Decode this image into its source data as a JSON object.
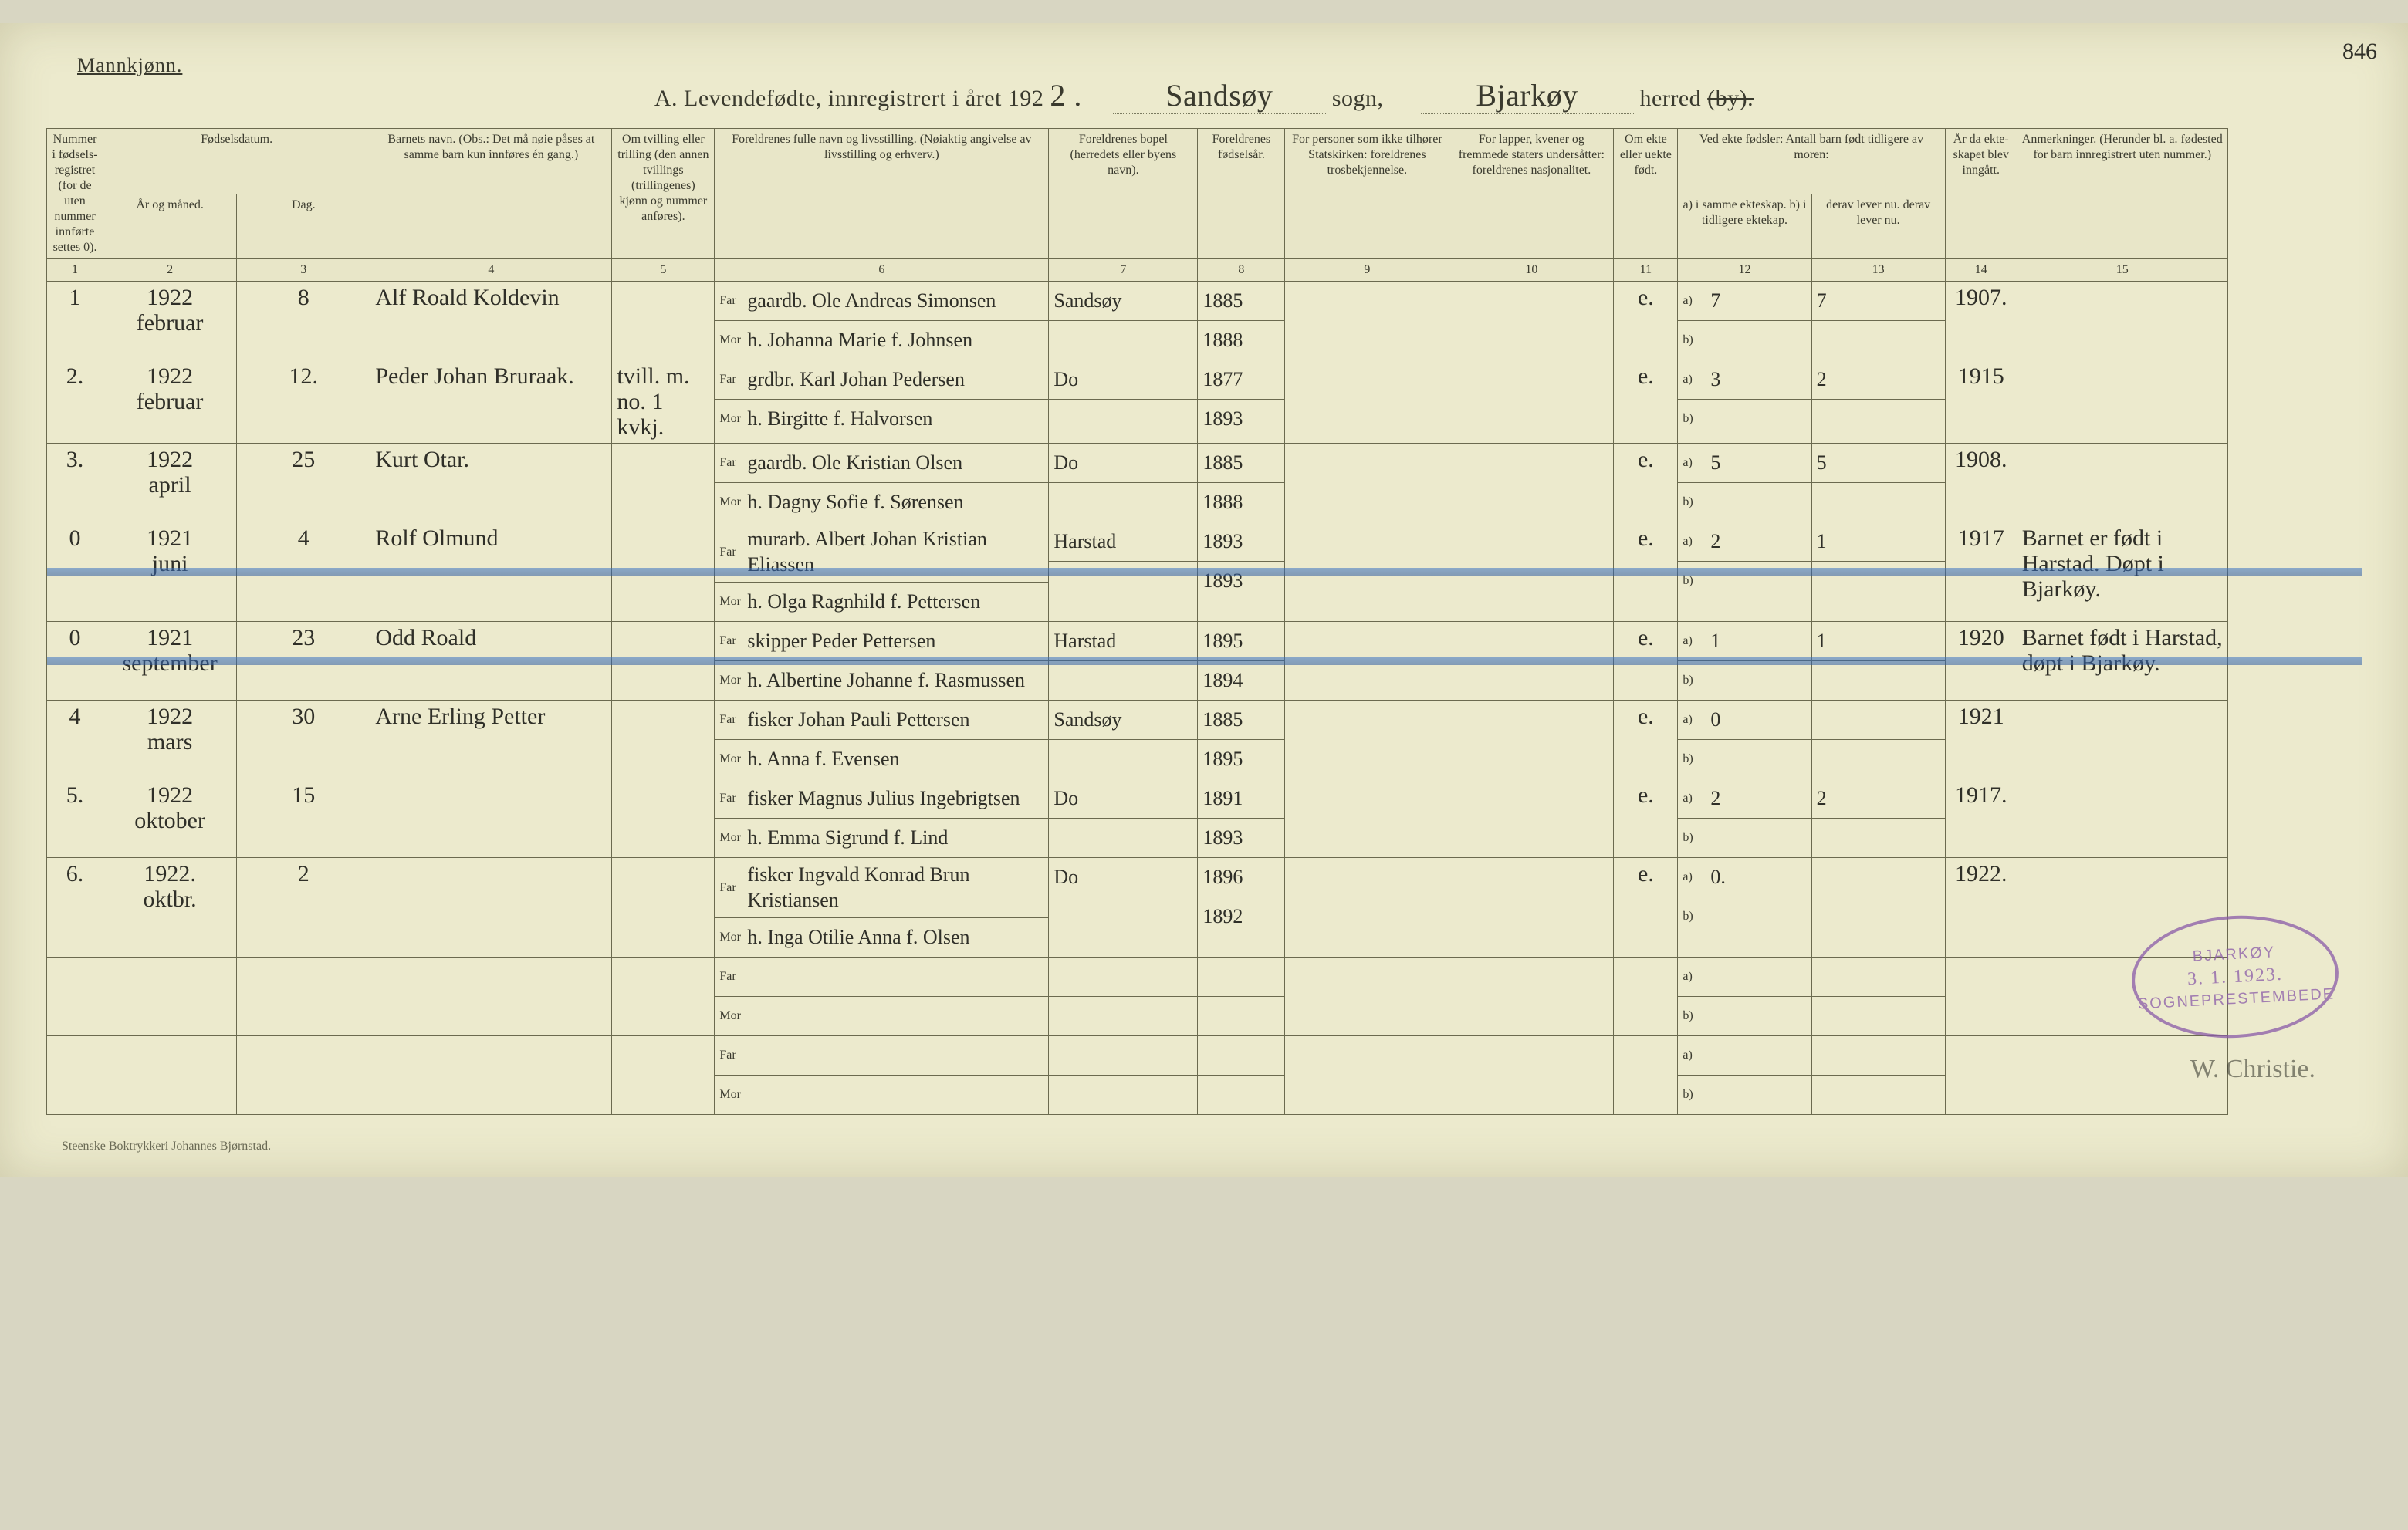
{
  "meta": {
    "gender_label": "Mannkjønn.",
    "page_number_hand": "846",
    "title_prefix": "A.  Levendefødte, innregistrert i året 192",
    "year_suffix_hand": "2 .",
    "sogn_label": "sogn,",
    "sogn_value": "Sandsøy",
    "herred_label": "herred",
    "herred_strike": "(by).",
    "herred_value": "Bjarkøy",
    "printer": "Steenske Boktrykkeri Johannes Bjørnstad.",
    "signature": "W. Christie.",
    "stamp_top": "BJARKØY",
    "stamp_date": "3. 1. 1923.",
    "stamp_bottom": "SOGNEPRESTEMBEDE"
  },
  "headers": {
    "c1": "Nummer i fødsels­registret (for de uten nummer innførte settes 0).",
    "c2_group": "Fødselsdatum.",
    "c2": "År og måned.",
    "c3": "Dag.",
    "c4": "Barnets navn.\n(Obs.: Det må nøie påses at samme barn kun innføres én gang.)",
    "c5": "Om tvilling eller trilling (den annen tvillings (trillingenes) kjønn og nummer anføres).",
    "c6": "Foreldrenes fulle navn og livsstilling.\n(Nøiaktig angivelse av livsstilling og erhverv.)",
    "c7": "Foreldrenes bopel (herredets eller byens navn).",
    "c8": "For­eldrenes fødsels­år.",
    "c9": "For personer som ikke tilhører Statskirken: foreldrenes trosbekjennelse.",
    "c10": "For lapper, kvener og fremmede staters undersåtter: foreldrenes nasjonalitet.",
    "c11": "Om ekte eller uekte født.",
    "c12_group": "Ved ekte fødsler: Antall barn født tidligere av moren:",
    "c12": "a) i samme ekteskap.\nb) i tidligere ektekap.",
    "c13": "derav lever nu.\nderav lever nu.",
    "c14": "År da ekte­skapet blev inn­gått.",
    "c15": "Anmerkninger.\n(Herunder bl. a. fødested for barn innregistrert uten nummer.)",
    "nums": [
      "1",
      "2",
      "3",
      "4",
      "5",
      "6",
      "7",
      "8",
      "9",
      "10",
      "11",
      "12",
      "13",
      "14",
      "15"
    ],
    "far": "Far",
    "mor": "Mor",
    "a": "a)",
    "b": "b)"
  },
  "rows": [
    {
      "num": "1",
      "year_month": "1922\nfebruar",
      "day": "8",
      "child": "Alf Roald Koldevin",
      "twin": "",
      "far": "gaardb. Ole Andreas Simonsen",
      "mor": "h. Johanna Marie f. Johnsen",
      "res": "Sandsøy",
      "far_year": "1885",
      "mor_year": "1888",
      "rel": "",
      "nat": "",
      "legit": "e.",
      "a": "7",
      "b": "",
      "alive_a": "7",
      "alive_b": "",
      "marr_year": "1907.",
      "remarks": "",
      "struck": false
    },
    {
      "num": "2.",
      "year_month": "1922\nfebruar",
      "day": "12.",
      "child": "Peder Johan Bruraak.",
      "twin": "tvill. m.\nno. 1 kvkj.",
      "far": "grdbr. Karl Johan Pedersen",
      "mor": "h. Birgitte f. Halvorsen",
      "res": "Do",
      "far_year": "1877",
      "mor_year": "1893",
      "rel": "",
      "nat": "",
      "legit": "e.",
      "a": "3",
      "b": "",
      "alive_a": "2",
      "alive_b": "",
      "marr_year": "1915",
      "remarks": "",
      "struck": false
    },
    {
      "num": "3.",
      "year_month": "1922\napril",
      "day": "25",
      "child": "Kurt Otar.",
      "twin": "",
      "far": "gaardb. Ole Kristian Olsen",
      "mor": "h. Dagny Sofie f. Sørensen",
      "res": "Do",
      "far_year": "1885",
      "mor_year": "1888",
      "rel": "",
      "nat": "",
      "legit": "e.",
      "a": "5",
      "b": "",
      "alive_a": "5",
      "alive_b": "",
      "marr_year": "1908.",
      "remarks": "",
      "struck": false
    },
    {
      "num": "0",
      "year_month": "1921\njuni",
      "day": "4",
      "child": "Rolf Olmund",
      "twin": "",
      "far": "murarb. Albert Johan Kristian Eliassen",
      "mor": "h. Olga Ragnhild f. Pettersen",
      "res": "Harstad",
      "far_year": "1893",
      "mor_year": "1893",
      "rel": "",
      "nat": "",
      "legit": "e.",
      "a": "2",
      "b": "",
      "alive_a": "1",
      "alive_b": "",
      "marr_year": "1917",
      "remarks": "Barnet er født i Harstad. Døpt i Bjarkøy.",
      "struck": true
    },
    {
      "num": "0",
      "year_month": "1921\nseptember",
      "day": "23",
      "child": "Odd Roald",
      "twin": "",
      "far": "skipper Peder Pettersen",
      "mor": "h. Albertine Johanne f. Rasmussen",
      "res": "Harstad",
      "far_year": "1895",
      "mor_year": "1894",
      "rel": "",
      "nat": "",
      "legit": "e.",
      "a": "1",
      "b": "",
      "alive_a": "1",
      "alive_b": "",
      "marr_year": "1920",
      "remarks": "Barnet født i Harstad, døpt i Bjarkøy.",
      "struck": true
    },
    {
      "num": "4",
      "year_month": "1922\nmars",
      "day": "30",
      "child": "Arne Erling Petter",
      "twin": "",
      "far": "fisker Johan Pauli Pettersen",
      "mor": "h. Anna f. Evensen",
      "res": "Sandsøy",
      "far_year": "1885",
      "mor_year": "1895",
      "rel": "",
      "nat": "",
      "legit": "e.",
      "a": "0",
      "b": "",
      "alive_a": "",
      "alive_b": "",
      "marr_year": "1921",
      "remarks": "",
      "struck": false
    },
    {
      "num": "5.",
      "year_month": "1922\noktober",
      "day": "15",
      "child": "",
      "twin": "",
      "far": "fisker Magnus Julius Ingebrigtsen",
      "mor": "h. Emma Sigrund f. Lind",
      "res": "Do",
      "far_year": "1891",
      "mor_year": "1893",
      "rel": "",
      "nat": "",
      "legit": "e.",
      "a": "2",
      "b": "",
      "alive_a": "2",
      "alive_b": "",
      "marr_year": "1917.",
      "remarks": "",
      "struck": false
    },
    {
      "num": "6.",
      "year_month": "1922.\noktbr.",
      "day": "2",
      "child": "",
      "twin": "",
      "far": "fisker Ingvald Konrad Brun Kristiansen",
      "mor": "h. Inga Otilie Anna f. Olsen",
      "res": "Do",
      "far_year": "1896",
      "mor_year": "1892",
      "rel": "",
      "nat": "",
      "legit": "e.",
      "a": "0.",
      "b": "",
      "alive_a": "",
      "alive_b": "",
      "marr_year": "1922.",
      "remarks": "",
      "struck": false
    },
    {
      "num": "",
      "year_month": "",
      "day": "",
      "child": "",
      "twin": "",
      "far": "",
      "mor": "",
      "res": "",
      "far_year": "",
      "mor_year": "",
      "rel": "",
      "nat": "",
      "legit": "",
      "a": "",
      "b": "",
      "alive_a": "",
      "alive_b": "",
      "marr_year": "",
      "remarks": "",
      "struck": false
    },
    {
      "num": "",
      "year_month": "",
      "day": "",
      "child": "",
      "twin": "",
      "far": "",
      "mor": "",
      "res": "",
      "far_year": "",
      "mor_year": "",
      "rel": "",
      "nat": "",
      "legit": "",
      "a": "",
      "b": "",
      "alive_a": "",
      "alive_b": "",
      "marr_year": "",
      "remarks": "",
      "struck": false
    }
  ]
}
